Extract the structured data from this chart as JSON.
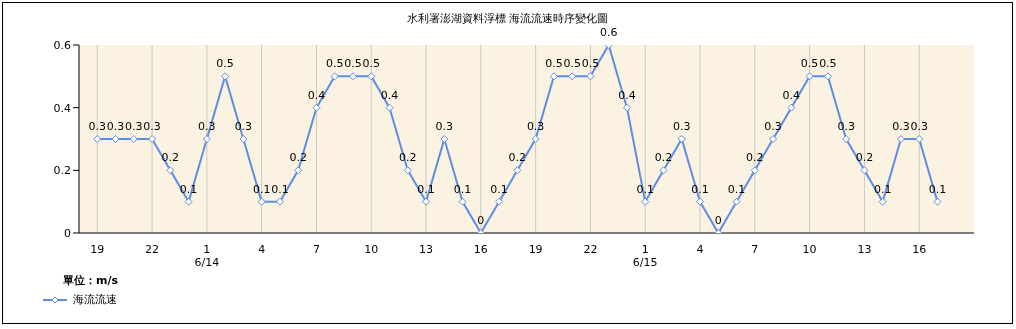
{
  "chart_data": {
    "type": "line",
    "title": "水利署澎湖資料浮標 海流流速時序變化圖",
    "legend_title": "單位：m/s",
    "legend": "bottom left",
    "grid": "x",
    "marker": "diamond",
    "line_style": "solid",
    "data_labels": true,
    "x": [
      "--06-13T19:00",
      "--06-13T20:00",
      "--06-13T21:00",
      "--06-13T22:00",
      "--06-13T23:00",
      "--06-14T00:00",
      "--06-14T01:00",
      "--06-14T02:00",
      "--06-14T03:00",
      "--06-14T04:00",
      "--06-14T05:00",
      "--06-14T06:00",
      "--06-14T07:00",
      "--06-14T08:00",
      "--06-14T09:00",
      "--06-14T10:00",
      "--06-14T11:00",
      "--06-14T12:00",
      "--06-14T13:00",
      "--06-14T14:00",
      "--06-14T15:00",
      "--06-14T16:00",
      "--06-14T17:00",
      "--06-14T18:00",
      "--06-14T19:00",
      "--06-14T20:00",
      "--06-14T21:00",
      "--06-14T22:00",
      "--06-14T23:00",
      "--06-15T00:00",
      "--06-15T01:00",
      "--06-15T02:00",
      "--06-15T03:00",
      "--06-15T04:00",
      "--06-15T05:00",
      "--06-15T06:00",
      "--06-15T07:00",
      "--06-15T08:00",
      "--06-15T09:00",
      "--06-15T10:00",
      "--06-15T11:00",
      "--06-15T12:00",
      "--06-15T13:00",
      "--06-15T14:00",
      "--06-15T15:00",
      "--06-15T16:00",
      "--06-15T17:00"
    ],
    "xlim": [
      "--06-13T18:00",
      "--06-15T19:00"
    ],
    "xticks": [
      {
        "value": "--06-13T19:00",
        "label": "19"
      },
      {
        "value": "--06-13T22:00",
        "label": "22"
      },
      {
        "value": "--06-14T01:00",
        "label": "1\n6/14"
      },
      {
        "value": "--06-14T04:00",
        "label": "4"
      },
      {
        "value": "--06-14T07:00",
        "label": "7"
      },
      {
        "value": "--06-14T10:00",
        "label": "10"
      },
      {
        "value": "--06-14T13:00",
        "label": "13"
      },
      {
        "value": "--06-14T16:00",
        "label": "16"
      },
      {
        "value": "--06-14T19:00",
        "label": "19"
      },
      {
        "value": "--06-14T22:00",
        "label": "22"
      },
      {
        "value": "--06-15T01:00",
        "label": "1\n6/15"
      },
      {
        "value": "--06-15T04:00",
        "label": "4"
      },
      {
        "value": "--06-15T07:00",
        "label": "7"
      },
      {
        "value": "--06-15T10:00",
        "label": "10"
      },
      {
        "value": "--06-15T13:00",
        "label": "13"
      },
      {
        "value": "--06-15T16:00",
        "label": "16"
      }
    ],
    "ylim": [
      0,
      0.6
    ],
    "yticks": [
      0,
      0.2,
      0.4,
      0.6
    ],
    "series": [
      {
        "name": "海流流速",
        "color": "#5b8de6",
        "values": [
          0.3,
          0.3,
          0.3,
          0.3,
          0.2,
          0.1,
          0.3,
          0.5,
          0.3,
          0.1,
          0.1,
          0.2,
          0.4,
          0.5,
          0.5,
          0.5,
          0.4,
          0.2,
          0.1,
          0.3,
          0.1,
          0,
          0.1,
          0.2,
          0.3,
          0.5,
          0.5,
          0.5,
          0.6,
          0.4,
          0.1,
          0.2,
          0.3,
          0.1,
          0,
          0.1,
          0.2,
          0.3,
          0.4,
          0.5,
          0.5,
          0.3,
          0.2,
          0.1,
          0.3,
          0.3,
          0.1
        ]
      }
    ]
  }
}
